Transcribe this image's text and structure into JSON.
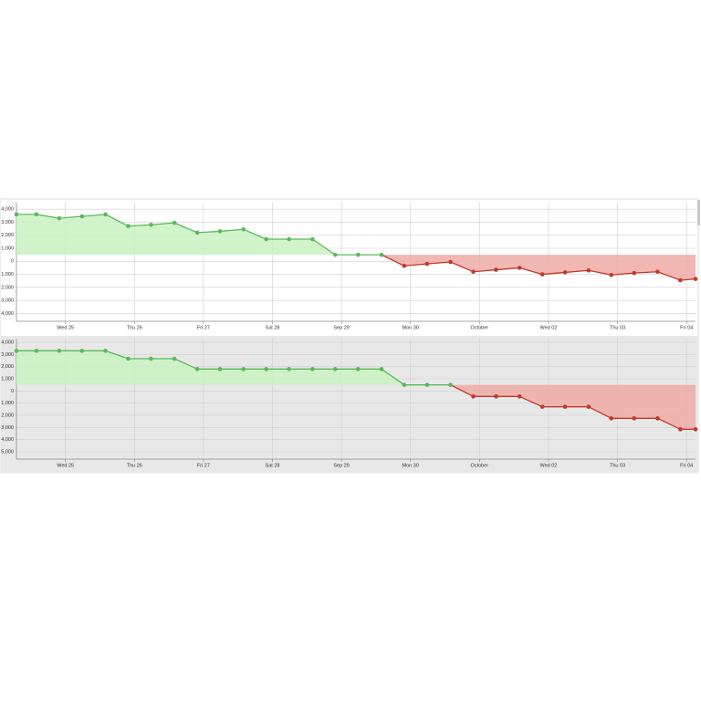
{
  "chart_data": [
    {
      "type": "line",
      "background": "#ffffff",
      "x": [
        24.29,
        24.58,
        24.91,
        25.24,
        25.58,
        25.91,
        26.24,
        26.58,
        26.91,
        27.24,
        27.58,
        27.91,
        28.24,
        28.58,
        28.91,
        29.24,
        29.58,
        29.91,
        30.24,
        30.58,
        30.91,
        31.24,
        31.58,
        31.91,
        32.24,
        32.58,
        32.91,
        33.24,
        33.58,
        33.91,
        34.13
      ],
      "series": [
        {
          "color": "#5cb85c",
          "fill": "#c9f2c2",
          "negative_color": "#c0392b",
          "negative_fill": "#eeaaa6",
          "threshold": 500,
          "values": [
            3600,
            3600,
            3300,
            3450,
            3600,
            2700,
            2800,
            2950,
            2200,
            2300,
            2450,
            1700,
            1700,
            1700,
            500,
            500,
            500,
            -350,
            -200,
            -50,
            -800,
            -650,
            -500,
            -1000,
            -850,
            -700,
            -1050,
            -900,
            -800,
            -1450,
            -1350
          ]
        }
      ],
      "xlim": [
        24.29,
        34.13
      ],
      "xticks": [
        {
          "value": 25,
          "label": "Wed 25"
        },
        {
          "value": 26,
          "label": "Thu 26"
        },
        {
          "value": 27,
          "label": "Fri 27"
        },
        {
          "value": 28,
          "label": "Sat 28"
        },
        {
          "value": 29,
          "label": "Sep 29"
        },
        {
          "value": 30,
          "label": "Mon 30"
        },
        {
          "value": 31,
          "label": "October"
        },
        {
          "value": 32,
          "label": "Wed 02"
        },
        {
          "value": 33,
          "label": "Thu 03"
        },
        {
          "value": 34,
          "label": "Fri 04"
        }
      ],
      "ylim": [
        -4600,
        4500
      ],
      "yticks": [
        {
          "value": 4000,
          "label": "4,000"
        },
        {
          "value": 3000,
          "label": "3,000"
        },
        {
          "value": 2000,
          "label": "2,000"
        },
        {
          "value": 1000,
          "label": "1,000"
        },
        0,
        {
          "value": -1000,
          "label": "1,000"
        },
        {
          "value": -2000,
          "label": "2,000"
        },
        {
          "value": -3000,
          "label": "3,000"
        },
        {
          "value": -4000,
          "label": "4,000"
        }
      ],
      "grid": true
    },
    {
      "type": "line",
      "background": "#e8e8e8",
      "x": [
        24.29,
        24.58,
        24.91,
        25.24,
        25.58,
        25.91,
        26.24,
        26.58,
        26.91,
        27.24,
        27.58,
        27.91,
        28.24,
        28.58,
        28.91,
        29.24,
        29.58,
        29.91,
        30.24,
        30.58,
        30.91,
        31.24,
        31.58,
        31.91,
        32.24,
        32.58,
        32.91,
        33.24,
        33.58,
        33.91,
        34.13
      ],
      "series": [
        {
          "color": "#5cb85c",
          "fill": "#c9f2c2",
          "negative_color": "#c0392b",
          "negative_fill": "#eeaaa6",
          "threshold": 500,
          "values": [
            3300,
            3300,
            3300,
            3300,
            3300,
            2650,
            2650,
            2650,
            1800,
            1800,
            1800,
            1800,
            1800,
            1800,
            1800,
            1800,
            1800,
            500,
            500,
            500,
            -450,
            -450,
            -450,
            -1300,
            -1300,
            -1300,
            -2250,
            -2250,
            -2250,
            -3150,
            -3150
          ]
        }
      ],
      "xlim": [
        24.29,
        34.13
      ],
      "xticks": [
        {
          "value": 25,
          "label": "Wed 25"
        },
        {
          "value": 26,
          "label": "Thu 26"
        },
        {
          "value": 27,
          "label": "Fri 27"
        },
        {
          "value": 28,
          "label": "Sat 28"
        },
        {
          "value": 29,
          "label": "Sep 29"
        },
        {
          "value": 30,
          "label": "Mon 30"
        },
        {
          "value": 31,
          "label": "October"
        },
        {
          "value": 32,
          "label": "Wed 02"
        },
        {
          "value": 33,
          "label": "Thu 03"
        },
        {
          "value": 34,
          "label": "Fri 04"
        }
      ],
      "ylim": [
        -5600,
        4300
      ],
      "yticks": [
        {
          "value": 4000,
          "label": "4,000"
        },
        {
          "value": 3000,
          "label": "3,000"
        },
        {
          "value": 2000,
          "label": "2,000"
        },
        {
          "value": 1000,
          "label": "1,000"
        },
        0,
        {
          "value": -1000,
          "label": "1,000"
        },
        {
          "value": -2000,
          "label": "2,000"
        },
        {
          "value": -3000,
          "label": "3,000"
        },
        {
          "value": -4000,
          "label": "4,000"
        },
        {
          "value": -5000,
          "label": "5,000"
        }
      ],
      "grid": true
    }
  ]
}
